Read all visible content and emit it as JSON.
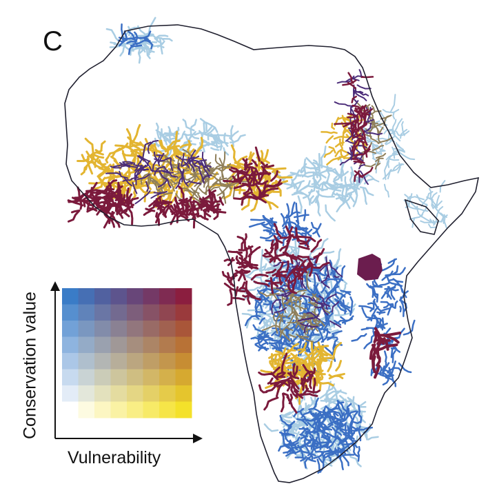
{
  "panel_label": "C",
  "legend": {
    "y_axis_label": "Conservation value",
    "x_axis_label": "Vulnerability",
    "grid_size": 8,
    "corner_colors": {
      "low_low": "#ffffff",
      "high_vulnerability_low_value": "#f4e12a",
      "low_vulnerability_high_value": "#3a7cc7",
      "high_high": "#8b1e3f"
    }
  },
  "map_palette": {
    "outline": "#1f1f2e",
    "high_value_low_vulnerability": "#3b6fc4",
    "light_blue": "#a9cde3",
    "high_vulnerability": "#e3b531",
    "both_high": "#7b1a3c",
    "mixed": "#8f7f5a",
    "purple": "#4b2c79"
  }
}
